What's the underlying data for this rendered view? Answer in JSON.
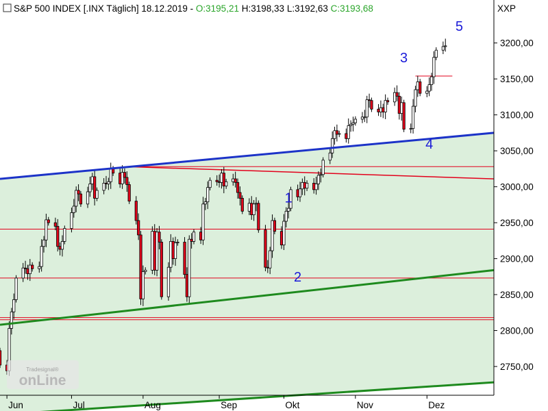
{
  "header": {
    "title": "S&P 500 INDEX [.INX  Täglich] 18.12.2019 - ",
    "open": "O:3195,21",
    "high": " H:3198,33",
    "low": " L:3192,63",
    "close": " C:3193,68",
    "symbol": "XXP",
    "open_color": "#2aa52a",
    "close_color": "#2aa52a"
  },
  "logo": {
    "main": "onLine",
    "sub": "Tradesignal®"
  },
  "chart_data": {
    "type": "candlestick",
    "ylim": [
      2710,
      3235
    ],
    "y_ticks": [
      2750,
      2800,
      2850,
      2900,
      2950,
      3000,
      3050,
      3100,
      3150,
      3200
    ],
    "y_tick_labels": [
      "2750,00",
      "2800,00",
      "2850,00",
      "2900,00",
      "2950,00",
      "3000,00",
      "3050,00",
      "3100,00",
      "3150,00",
      "3200,00"
    ],
    "x_month_labels": [
      {
        "label": "Jun",
        "date": "2019-06-03"
      },
      {
        "label": "Jul",
        "date": "2019-07-01"
      },
      {
        "label": "Aug",
        "date": "2019-08-01"
      },
      {
        "label": "Sep",
        "date": "2019-09-03"
      },
      {
        "label": "Okt",
        "date": "2019-10-01"
      },
      {
        "label": "Nov",
        "date": "2019-11-01"
      },
      {
        "label": "Dez",
        "date": "2019-12-02"
      }
    ],
    "start_date": "2019-05-31",
    "closes": [
      2752,
      2744,
      2803,
      2826,
      2843,
      2873,
      2887,
      2886,
      2879,
      2891,
      2886,
      2889,
      2917,
      2926,
      2954,
      2950,
      2945,
      2917,
      2913,
      2924,
      2942,
      2964,
      2973,
      2995,
      2990,
      2976,
      2993,
      3004,
      3014,
      2984,
      2995,
      3005,
      3004,
      3007,
      3025,
      3019,
      3004,
      3020,
      3013,
      3003,
      2980,
      2953,
      2933,
      2844,
      2882,
      2884,
      2938,
      2884,
      2937,
      2923,
      2847,
      2888,
      2924,
      2900,
      2922,
      2923,
      2878,
      2847,
      2927,
      2924,
      2937,
      2926,
      2976,
      2979,
      2999,
      3009,
      3007,
      3006,
      3019,
      3001,
      3007,
      3011,
      3006,
      2992,
      2984,
      2966,
      2977,
      2961,
      2976,
      2977,
      2940,
      2888,
      2887,
      2911,
      2953,
      2938,
      2919,
      2952,
      2966,
      2970,
      2996,
      2986,
      2997,
      3006,
      2998,
      3005,
      2996,
      3004,
      3016,
      3017,
      3037,
      3047,
      3067,
      3078,
      3073,
      3074,
      3067,
      3085,
      3087,
      3089,
      3094,
      3097,
      3097,
      3121,
      3120,
      3108,
      3104,
      3110,
      3104,
      3120,
      3118,
      3131,
      3126,
      3102,
      3117,
      3080,
      3081,
      3112,
      3135,
      3146,
      3130,
      3133,
      3142,
      3153,
      3180,
      3190,
      3195,
      3196
    ],
    "series": [
      {
        "name": "",
        "type": "line",
        "points": [
          [
            "2019-05-31",
            3011
          ],
          [
            "2019-12-31",
            3075
          ]
        ]
      },
      {
        "name": "",
        "type": "line",
        "points": [
          [
            "2019-05-31",
            2808
          ],
          [
            "2019-12-31",
            2884
          ]
        ]
      },
      {
        "name": "",
        "type": "line",
        "points": [
          [
            "2019-05-31",
            2683
          ],
          [
            "2019-12-31",
            2728
          ]
        ]
      },
      {
        "name": "",
        "type": "hline",
        "y": 2941
      },
      {
        "name": "",
        "type": "hline",
        "y": 2873
      },
      {
        "name": "",
        "type": "hline",
        "y": 2818
      },
      {
        "name": "",
        "type": "hline",
        "y": 2815
      },
      {
        "name": "",
        "type": "hline",
        "y": 3028,
        "from": "2019-07-25"
      },
      {
        "name": "",
        "type": "line",
        "points": [
          [
            "2019-07-25",
            3028
          ],
          [
            "2019-12-31",
            3011
          ]
        ]
      },
      {
        "name": "",
        "type": "hline",
        "y": 3154,
        "from": "2019-11-27",
        "to": "2019-12-13"
      }
    ],
    "annotations": [
      {
        "text": "1",
        "date": "2019-10-03",
        "y": 2978
      },
      {
        "text": "2",
        "date": "2019-10-07",
        "y": 2868
      },
      {
        "text": "3",
        "date": "2019-11-22",
        "y": 3173
      },
      {
        "text": "4",
        "date": "2019-12-03",
        "y": 3053
      },
      {
        "text": "5",
        "date": "2019-12-16",
        "y": 3217
      }
    ],
    "colors": {
      "up_fill": "#ffffff",
      "down_fill": "#e3001b",
      "wick": "#000000",
      "channel_upper": "#1c33c8",
      "channel_lower": "#1e8a1e",
      "support": "#e3001b",
      "zone": "#dcefdc"
    }
  }
}
